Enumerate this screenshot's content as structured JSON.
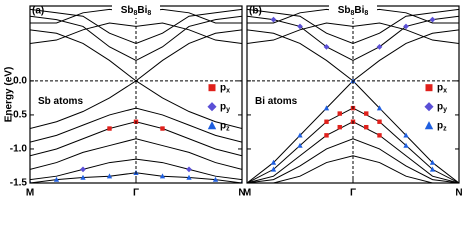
{
  "chart_data": [
    {
      "type": "line",
      "label": "(a)",
      "title": "Sb8Bi8",
      "annotation": "Sb atoms",
      "ylabel": "Energy (eV)",
      "xlim": [
        0,
        1
      ],
      "xticks": [
        {
          "value": 0,
          "label": "M"
        },
        {
          "value": 0.5,
          "label": "Γ"
        },
        {
          "value": 1,
          "label": "N"
        }
      ],
      "ylim": [
        -1.5,
        1.1
      ],
      "yticks": [
        {
          "value": 0,
          "label": "0.0"
        },
        {
          "value": -0.5,
          "label": "-0.5"
        },
        {
          "value": -1,
          "label": "-1.0"
        },
        {
          "value": -1.5,
          "label": "-1.5"
        }
      ],
      "ytick_labels": true,
      "x": [
        0,
        0.125,
        0.25,
        0.375,
        0.5,
        0.625,
        0.75,
        0.875,
        1
      ],
      "bands": [
        {
          "color": "#000000",
          "values": [
            0.75,
            0.7,
            0.55,
            0.3,
            0.0,
            0.3,
            0.55,
            0.7,
            0.75
          ]
        },
        {
          "color": "#000000",
          "values": [
            0.95,
            0.9,
            0.8,
            0.5,
            0.3,
            0.5,
            0.8,
            0.9,
            0.95
          ]
        },
        {
          "color": "#000000",
          "values": [
            1.05,
            1.0,
            0.95,
            0.7,
            0.55,
            0.7,
            0.95,
            1.0,
            1.05
          ]
        },
        {
          "color": "#000000",
          "values": [
            0.55,
            0.6,
            0.75,
            0.85,
            0.8,
            0.85,
            0.75,
            0.6,
            0.55
          ]
        },
        {
          "color": "#000000",
          "values": [
            0.85,
            0.85,
            1.0,
            1.05,
            1.0,
            1.05,
            1.0,
            0.85,
            0.85
          ]
        },
        {
          "color": "#000000",
          "values": [
            -0.7,
            -0.6,
            -0.45,
            -0.25,
            0.0,
            -0.25,
            -0.45,
            -0.6,
            -0.7
          ]
        },
        {
          "color": "#000000",
          "values": [
            -0.9,
            -0.8,
            -0.65,
            -0.5,
            -0.4,
            -0.5,
            -0.65,
            -0.8,
            -0.9
          ]
        },
        {
          "color": "#000000",
          "values": [
            -1.1,
            -1.0,
            -0.85,
            -0.7,
            -0.6,
            -0.7,
            -0.85,
            -1.0,
            -1.1
          ]
        },
        {
          "color": "#000000",
          "values": [
            -1.3,
            -1.2,
            -1.05,
            -0.95,
            -0.85,
            -0.95,
            -1.05,
            -1.2,
            -1.3
          ]
        },
        {
          "color": "#000000",
          "values": [
            -1.45,
            -1.4,
            -1.3,
            -1.2,
            -1.15,
            -1.2,
            -1.3,
            -1.4,
            -1.45
          ]
        },
        {
          "color": "#000000",
          "values": [
            -1.5,
            -1.45,
            -1.42,
            -1.4,
            -1.35,
            -1.4,
            -1.42,
            -1.45,
            -1.5
          ]
        }
      ],
      "projections": [
        {
          "name": "px",
          "color": "#e0201b",
          "marker": "square",
          "x": [
            0.375,
            0.5,
            0.625
          ],
          "values": [
            -0.7,
            -0.6,
            -0.7
          ]
        },
        {
          "name": "py",
          "color": "#5a4fd6",
          "marker": "diamond",
          "x": [
            0.25,
            0.75
          ],
          "values": [
            -1.3,
            -1.3
          ]
        },
        {
          "name": "pz",
          "color": "#1f5fe0",
          "marker": "triangle",
          "x": [
            0,
            0.125,
            0.25,
            0.375,
            0.5,
            0.625,
            0.75,
            0.875,
            1
          ],
          "values": [
            -1.5,
            -1.45,
            -1.42,
            -1.4,
            -1.35,
            -1.4,
            -1.42,
            -1.45,
            -1.5
          ]
        }
      ]
    },
    {
      "type": "line",
      "label": "(b)",
      "title": "Sb8Bi8",
      "annotation": "Bi atoms",
      "xlim": [
        0,
        1
      ],
      "xticks": [
        {
          "value": 0,
          "label": "M"
        },
        {
          "value": 0.5,
          "label": "Γ"
        },
        {
          "value": 1,
          "label": "N"
        }
      ],
      "ylim": [
        -1.5,
        1.1
      ],
      "yticks": [
        0,
        -0.5,
        -1,
        -1.5
      ],
      "ytick_labels": false,
      "x": [
        0,
        0.125,
        0.25,
        0.375,
        0.5,
        0.625,
        0.75,
        0.875,
        1
      ],
      "bands": [
        {
          "color": "#000000",
          "values": [
            0.75,
            0.7,
            0.55,
            0.3,
            0.0,
            0.3,
            0.55,
            0.7,
            0.75
          ]
        },
        {
          "color": "#000000",
          "values": [
            0.95,
            0.9,
            0.8,
            0.5,
            0.3,
            0.5,
            0.8,
            0.9,
            0.95
          ]
        },
        {
          "color": "#000000",
          "values": [
            1.05,
            1.0,
            0.95,
            0.7,
            0.55,
            0.7,
            0.95,
            1.0,
            1.05
          ]
        },
        {
          "color": "#000000",
          "values": [
            0.55,
            0.6,
            0.75,
            0.85,
            0.8,
            0.85,
            0.75,
            0.6,
            0.55
          ]
        },
        {
          "color": "#000000",
          "values": [
            0.85,
            0.85,
            1.0,
            1.05,
            1.0,
            1.05,
            1.0,
            0.85,
            0.85
          ]
        },
        {
          "color": "#000000",
          "values": [
            -1.5,
            -1.2,
            -0.8,
            -0.4,
            0.0,
            -0.4,
            -0.8,
            -1.2,
            -1.5
          ]
        },
        {
          "color": "#000000",
          "values": [
            -1.5,
            -1.3,
            -0.95,
            -0.6,
            -0.4,
            -0.6,
            -0.95,
            -1.3,
            -1.5
          ]
        },
        {
          "color": "#000000",
          "values": [
            -1.5,
            -1.4,
            -1.1,
            -0.8,
            -0.6,
            -0.8,
            -1.1,
            -1.4,
            -1.5
          ]
        },
        {
          "color": "#000000",
          "values": [
            -1.5,
            -1.45,
            -1.25,
            -1.0,
            -0.85,
            -1.0,
            -1.25,
            -1.45,
            -1.5
          ]
        },
        {
          "color": "#000000",
          "values": [
            -1.5,
            -1.5,
            -1.4,
            -1.2,
            -1.1,
            -1.2,
            -1.4,
            -1.5,
            -1.5
          ]
        }
      ],
      "projections": [
        {
          "name": "px",
          "color": "#e0201b",
          "marker": "square",
          "x": [
            0.375,
            0.4375,
            0.5,
            0.5625,
            0.625,
            0.375,
            0.4375,
            0.5,
            0.5625,
            0.625
          ],
          "values": [
            -0.6,
            -0.48,
            -0.4,
            -0.48,
            -0.6,
            -0.8,
            -0.68,
            -0.6,
            -0.68,
            -0.8
          ]
        },
        {
          "name": "py",
          "color": "#5a4fd6",
          "marker": "diamond",
          "x": [
            0.125,
            0.25,
            0.375,
            0.625,
            0.75,
            0.875
          ],
          "values": [
            0.9,
            0.8,
            0.5,
            0.5,
            0.8,
            0.9
          ]
        },
        {
          "name": "pz",
          "color": "#1f5fe0",
          "marker": "triangle",
          "x": [
            0.125,
            0.25,
            0.375,
            0.5,
            0.625,
            0.75,
            0.875,
            0.125,
            0.25,
            0.75,
            0.875
          ],
          "values": [
            -1.2,
            -0.8,
            -0.4,
            0.0,
            -0.4,
            -0.8,
            -1.2,
            -1.3,
            -0.95,
            -0.95,
            -1.3
          ]
        }
      ]
    }
  ]
}
